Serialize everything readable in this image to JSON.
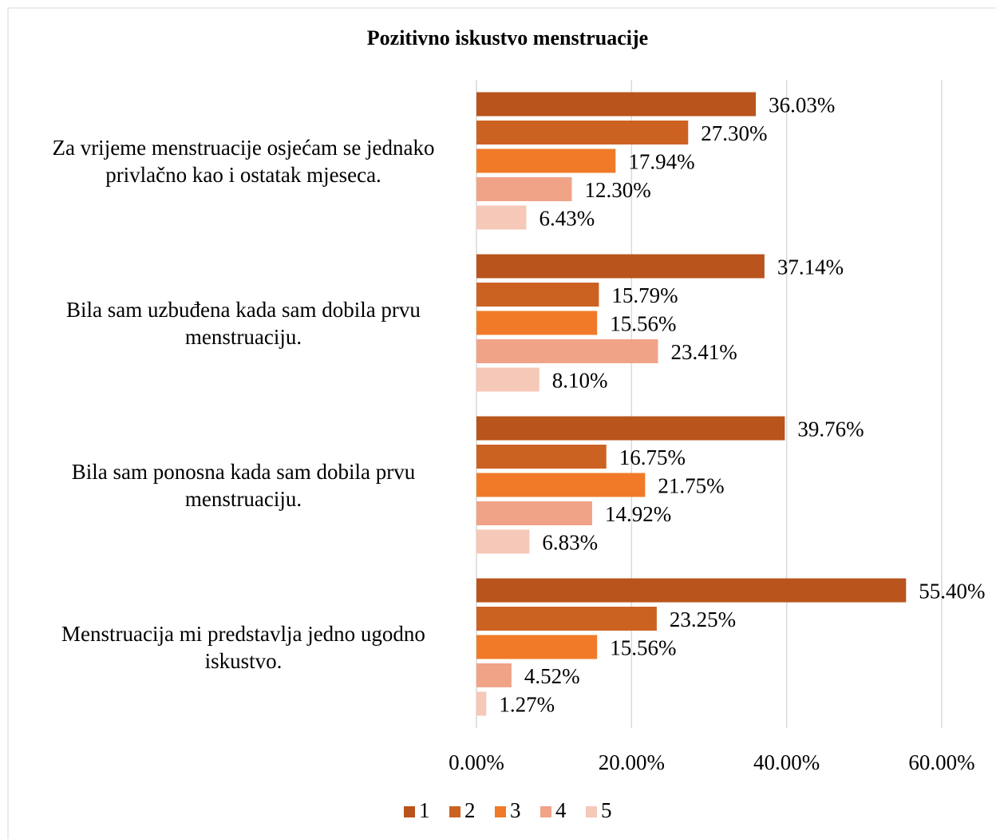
{
  "chart_data": {
    "type": "barh",
    "title": "Pozitivno iskustvo menstruacije",
    "categories": [
      "Za vrijeme menstruacije osjećam se jednako privlačno kao i ostatak mjeseca.",
      "Bila sam uzbuđena kada sam dobila prvu menstruaciju.",
      "Bila sam ponosna kada sam dobila prvu menstruaciju.",
      "Menstruacija mi predstavlja jedno ugodno iskustvo."
    ],
    "series": [
      {
        "name": "1",
        "color": "#b8541c",
        "values": [
          36.03,
          37.14,
          39.76,
          55.4
        ],
        "value_labels": [
          "36.03%",
          "37.14%",
          "39.76%",
          "55.40%"
        ]
      },
      {
        "name": "2",
        "color": "#cc6222",
        "values": [
          27.3,
          15.79,
          16.75,
          23.25
        ],
        "value_labels": [
          "27.30%",
          "15.79%",
          "16.75%",
          "23.25%"
        ]
      },
      {
        "name": "3",
        "color": "#f07a28",
        "values": [
          17.94,
          15.56,
          21.75,
          15.56
        ],
        "value_labels": [
          "17.94%",
          "15.56%",
          "21.75%",
          "15.56%"
        ]
      },
      {
        "name": "4",
        "color": "#f0a387",
        "values": [
          12.3,
          23.41,
          14.92,
          4.52
        ],
        "value_labels": [
          "12.30%",
          "23.41%",
          "14.92%",
          "4.52%"
        ]
      },
      {
        "name": "5",
        "color": "#f6c8b7",
        "values": [
          6.43,
          8.1,
          6.83,
          1.27
        ],
        "value_labels": [
          "6.43%",
          "8.10%",
          "6.83%",
          "1.27%"
        ]
      }
    ],
    "xlim": [
      0,
      60
    ],
    "xticks": [
      {
        "value": 0,
        "label": "0.00%"
      },
      {
        "value": 20,
        "label": "20.00%"
      },
      {
        "value": 40,
        "label": "40.00%"
      },
      {
        "value": 60,
        "label": "60.00%"
      }
    ],
    "grid": true,
    "legend": "bottom"
  }
}
